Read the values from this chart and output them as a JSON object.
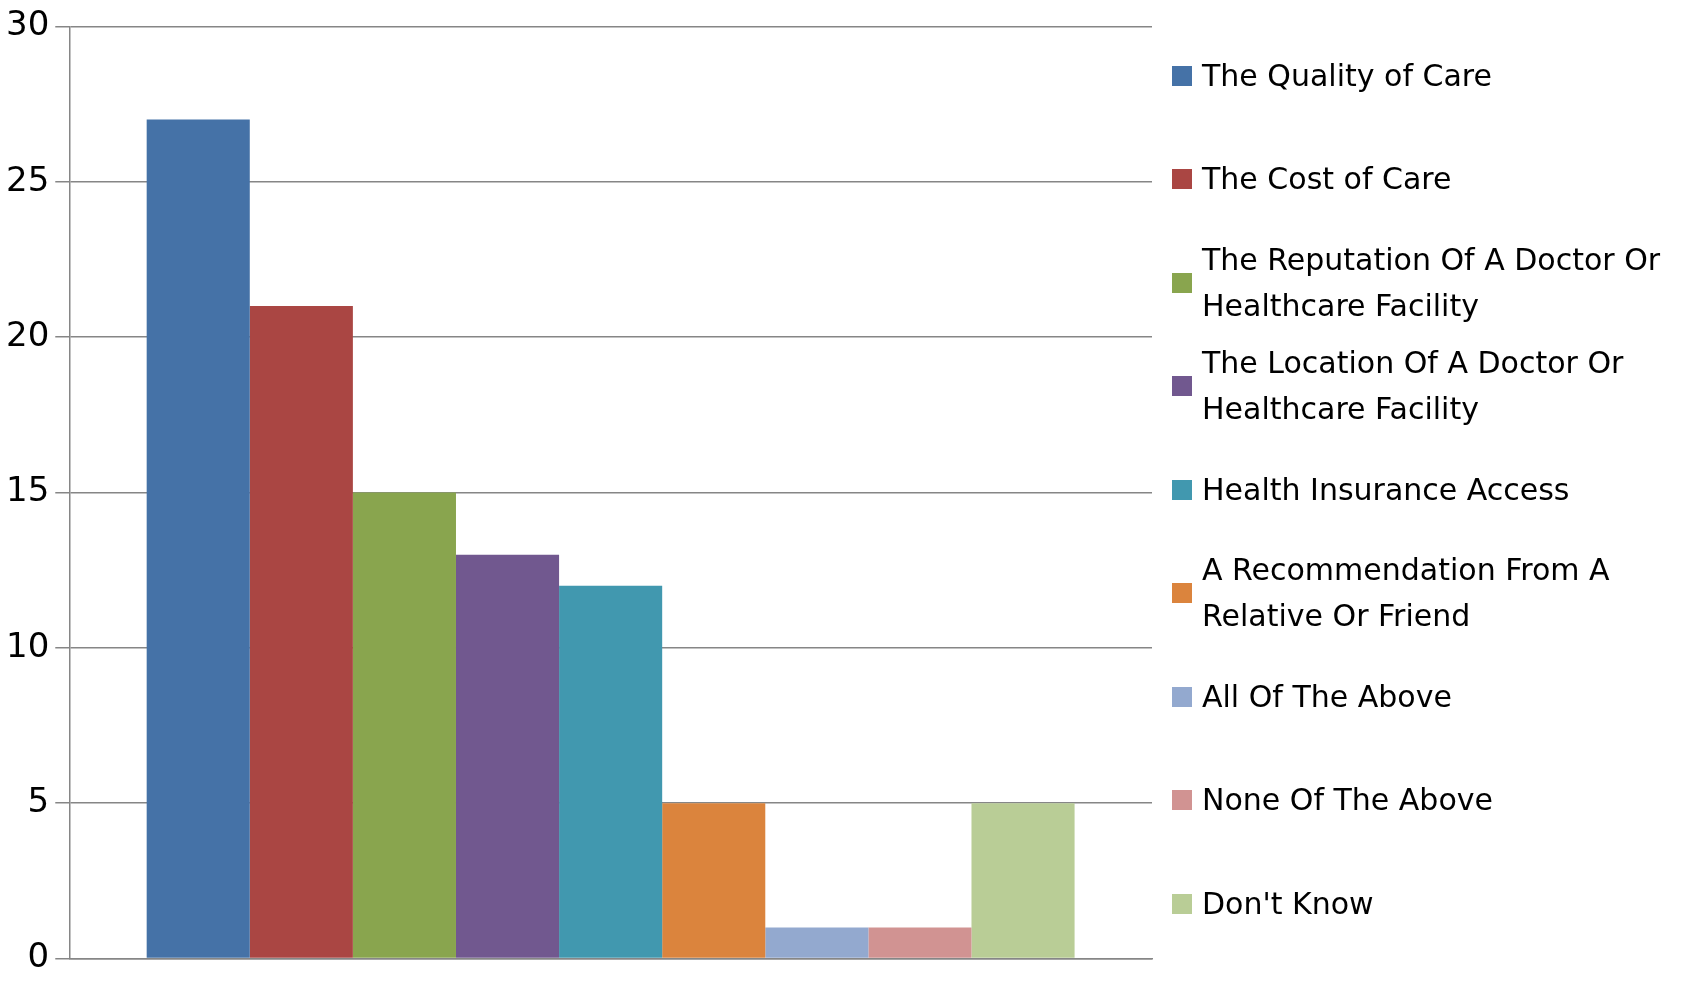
{
  "chart_data": {
    "type": "bar",
    "categories": [
      null
    ],
    "series": [
      {
        "name": "The Quality of Care",
        "color": "#4572a7",
        "values": [
          27
        ]
      },
      {
        "name": "The Cost of Care",
        "color": "#aa4643",
        "values": [
          21
        ]
      },
      {
        "name": "The Reputation Of A Doctor Or Healthcare Facility",
        "color": "#89a54e",
        "values": [
          15
        ]
      },
      {
        "name": "The Location Of A Doctor Or Healthcare Facility",
        "color": "#71588f",
        "values": [
          13
        ]
      },
      {
        "name": "Health Insurance Access",
        "color": "#4198af",
        "values": [
          12
        ]
      },
      {
        "name": "A Recommendation From A Relative Or Friend",
        "color": "#db843d",
        "values": [
          5
        ]
      },
      {
        "name": "All Of The Above",
        "color": "#93a9cf",
        "values": [
          1
        ]
      },
      {
        "name": "None Of The Above",
        "color": "#d19392",
        "values": [
          1
        ]
      },
      {
        "name": "Don't Know",
        "color": "#b9cd96",
        "values": [
          5
        ]
      }
    ],
    "ylim": [
      0,
      30
    ],
    "yticks": [
      0,
      5,
      10,
      15,
      20,
      25,
      30
    ],
    "grid": "y",
    "legend": "right"
  }
}
